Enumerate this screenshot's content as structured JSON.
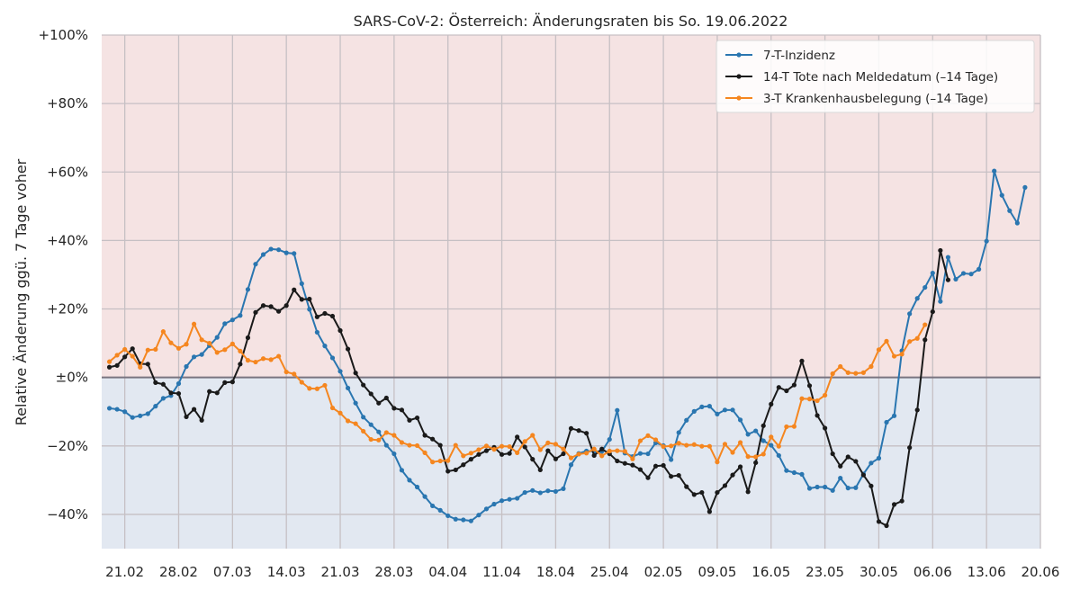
{
  "chart_data": {
    "type": "line",
    "title": "SARS-CoV-2: Österreich: Änderungsraten bis So. 19.06.2022",
    "ylabel": "Relative Änderung ggü. 7 Tage voher",
    "xlabel": "",
    "ylim": [
      -50,
      100
    ],
    "xlim": [
      "2022-02-18",
      "2022-06-20"
    ],
    "yticks": [
      -40,
      -20,
      0,
      20,
      40,
      60,
      80,
      100
    ],
    "ytick_labels": [
      "−40%",
      "−20%",
      "±0%",
      "+20%",
      "+40%",
      "+60%",
      "+80%",
      "+100%"
    ],
    "xticks": [
      "2022-02-21",
      "2022-02-28",
      "2022-03-07",
      "2022-03-14",
      "2022-03-21",
      "2022-03-28",
      "2022-04-04",
      "2022-04-11",
      "2022-04-18",
      "2022-04-25",
      "2022-05-02",
      "2022-05-09",
      "2022-05-16",
      "2022-05-23",
      "2022-05-30",
      "2022-06-06",
      "2022-06-13",
      "2022-06-20"
    ],
    "xtick_labels": [
      "21.02",
      "28.02",
      "07.03",
      "14.03",
      "21.03",
      "28.03",
      "04.04",
      "11.04",
      "18.04",
      "25.04",
      "02.05",
      "09.05",
      "16.05",
      "23.05",
      "30.05",
      "06.06",
      "13.06",
      "20.06"
    ],
    "grid": true,
    "legend_position": "top-right",
    "background": {
      "positive": "#f5e3e3",
      "negative": "#e2e8f1",
      "zero_line": "#7a7480",
      "grid": "#c6c0c4"
    },
    "series": [
      {
        "name": "7-T-Inzidenz",
        "color": "#2a76b0",
        "start": "2022-02-19",
        "values": [
          -9,
          -9.3,
          -10,
          -11.7,
          -11.2,
          -10.6,
          -8.4,
          -6.1,
          -5.3,
          -1.8,
          3.2,
          6,
          6.7,
          9.3,
          11.7,
          15.7,
          16.8,
          18.1,
          25.7,
          33.1,
          35.9,
          37.5,
          37.3,
          36.4,
          36.2,
          27.4,
          19.9,
          13.2,
          9.2,
          5.7,
          1.8,
          -3.1,
          -7.5,
          -11.6,
          -13.8,
          -15.9,
          -19.8,
          -22.3,
          -27.1,
          -30,
          -32,
          -34.8,
          -37.5,
          -38.8,
          -40.4,
          -41.4,
          -41.6,
          -41.9,
          -40.2,
          -38.4,
          -37,
          -36,
          -35.6,
          -35.3,
          -33.6,
          -33,
          -33.7,
          -33.1,
          -33.3,
          -32.5,
          -25.5,
          -22.2,
          -21.5,
          -21.6,
          -21.6,
          -18.1,
          -9.6,
          -22.1,
          -23.1,
          -22.2,
          -22.3,
          -19.1,
          -19.9,
          -24,
          -16.1,
          -12.5,
          -9.9,
          -8.6,
          -8.4,
          -10.7,
          -9.5,
          -9.5,
          -12.4,
          -16.6,
          -15.6,
          -18.5,
          -19.8,
          -22.8,
          -27.2,
          -27.8,
          -28.3,
          -32.4,
          -32,
          -32,
          -33,
          -29.4,
          -32.3,
          -32.2,
          -28.2,
          -25,
          -23.6,
          -13.1,
          -11.2,
          7.8,
          18.6,
          23.1,
          26.3,
          30.5,
          22.2,
          35.1,
          28.7,
          30.4,
          30.2,
          31.6,
          39.8,
          60.3,
          53.2,
          48.7,
          45.1,
          55.5
        ]
      },
      {
        "name": "14-T Tote nach Meldedatum (–14 Tage)",
        "color": "#1a1a1a",
        "start": "2022-02-19",
        "values": [
          3,
          3.5,
          6,
          8.4,
          4,
          3.9,
          -1.5,
          -2,
          -4.5,
          -4.7,
          -11.5,
          -9.3,
          -12.5,
          -4.1,
          -4.5,
          -1.5,
          -1.3,
          3.9,
          11.6,
          19,
          21,
          20.7,
          19.3,
          21,
          25.6,
          22.8,
          22.9,
          17.7,
          18.7,
          17.9,
          13.7,
          8.3,
          1.3,
          -2.2,
          -4.8,
          -7.5,
          -6,
          -9,
          -9.5,
          -12.5,
          -11.8,
          -16.9,
          -18,
          -19.8,
          -27.4,
          -27,
          -25.5,
          -23.9,
          -22.5,
          -21.4,
          -20.4,
          -22.5,
          -22.2,
          -17.4,
          -20.3,
          -23.9,
          -27,
          -21.4,
          -23.8,
          -22.3,
          -14.9,
          -15.5,
          -16.3,
          -22.8,
          -20.9,
          -22.3,
          -24.4,
          -25.1,
          -25.6,
          -26.9,
          -29.3,
          -25.9,
          -25.7,
          -28.9,
          -28.6,
          -31.9,
          -34.2,
          -33.6,
          -39.2,
          -33.6,
          -31.6,
          -28.5,
          -26.1,
          -33.4,
          -24.9,
          -14.1,
          -7.8,
          -2.9,
          -3.9,
          -2.2,
          4.8,
          -2.4,
          -11.1,
          -14.8,
          -22.3,
          -25.9,
          -23.2,
          -24.5,
          -28.5,
          -31.7,
          -42.1,
          -43.3,
          -37.1,
          -36.1,
          -20.5,
          -9.5,
          11,
          19.2,
          37.1,
          28.5
        ]
      },
      {
        "name": "3-T Krankenhausbelegung (–14 Tage)",
        "color": "#f5861f",
        "start": "2022-02-19",
        "values": [
          4.6,
          6.5,
          8.2,
          6.2,
          3,
          8,
          8.2,
          13.4,
          10.1,
          8.5,
          9.7,
          15.6,
          11,
          10,
          7.3,
          8.1,
          9.8,
          7.7,
          5,
          4.5,
          5.5,
          5.2,
          6.2,
          1.6,
          1,
          -1.4,
          -3.2,
          -3.3,
          -2.3,
          -8.9,
          -10.4,
          -12.7,
          -13.5,
          -15.7,
          -18.1,
          -18.3,
          -16.1,
          -16.9,
          -19,
          -19.8,
          -19.9,
          -22,
          -24.7,
          -24.4,
          -24.3,
          -19.8,
          -22.9,
          -22.1,
          -21.1,
          -20,
          -21,
          -20.1,
          -20.2,
          -22,
          -18.7,
          -16.9,
          -21.1,
          -19.1,
          -19.5,
          -20.9,
          -23.5,
          -22.4,
          -22.1,
          -20.9,
          -22.9,
          -21.5,
          -21.4,
          -21.6,
          -23.8,
          -18.5,
          -17,
          -18.2,
          -20.2,
          -20,
          -19.2,
          -19.8,
          -19.6,
          -20.1,
          -20.1,
          -24.7,
          -19.5,
          -21.9,
          -19,
          -23.1,
          -23.2,
          -22.4,
          -17.4,
          -20.1,
          -14.4,
          -14.3,
          -6.2,
          -6.3,
          -6.8,
          -5.2,
          1.1,
          3.2,
          1.4,
          1.2,
          1.4,
          3.2,
          8.1,
          10.6,
          6.2,
          6.8,
          10.5,
          11.4,
          15.4
        ]
      }
    ]
  }
}
